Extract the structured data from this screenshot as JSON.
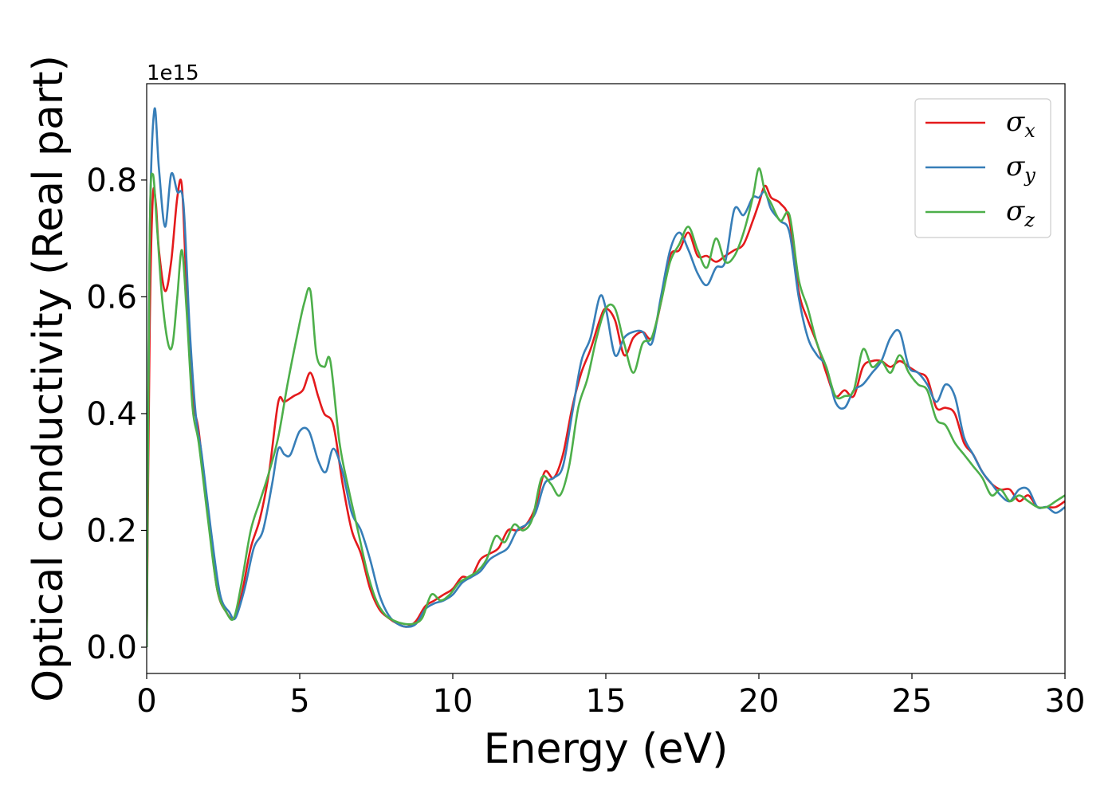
{
  "chart_data": {
    "type": "line",
    "xlabel": "Energy (eV)",
    "ylabel": "Optical conductivity (Real part)",
    "y_offset_text": "1e15",
    "xlim": [
      0,
      30
    ],
    "ylim": [
      -0.045,
      0.965
    ],
    "x_ticks": [
      0,
      5,
      10,
      15,
      20,
      25,
      30
    ],
    "x_tick_labels": [
      "0",
      "5",
      "10",
      "15",
      "20",
      "25",
      "30"
    ],
    "y_ticks": [
      0.0,
      0.2,
      0.4,
      0.6,
      0.8
    ],
    "y_tick_labels": [
      "0.0",
      "0.2",
      "0.4",
      "0.6",
      "0.8"
    ],
    "grid": false,
    "legend_position": "top-right",
    "series": [
      {
        "name": "σx",
        "symbol": "σ",
        "subscript": "x",
        "color": "#e41a1c",
        "x": [
          0,
          0.1,
          0.2,
          0.3,
          0.4,
          0.6,
          0.8,
          1.0,
          1.15,
          1.3,
          1.5,
          1.7,
          2.0,
          2.3,
          2.6,
          2.85,
          3.1,
          3.4,
          3.7,
          4.0,
          4.3,
          4.5,
          4.8,
          5.1,
          5.35,
          5.6,
          5.8,
          6.1,
          6.4,
          6.7,
          7.0,
          7.3,
          7.6,
          7.9,
          8.2,
          8.5,
          8.8,
          9.1,
          9.4,
          9.7,
          10.0,
          10.3,
          10.6,
          10.9,
          11.2,
          11.5,
          11.8,
          12.1,
          12.4,
          12.7,
          13.0,
          13.3,
          13.6,
          13.9,
          14.2,
          14.5,
          14.8,
          15.0,
          15.3,
          15.6,
          15.9,
          16.2,
          16.5,
          16.8,
          17.1,
          17.4,
          17.7,
          18.0,
          18.3,
          18.6,
          18.9,
          19.2,
          19.5,
          19.8,
          20.0,
          20.2,
          20.4,
          20.7,
          21.0,
          21.3,
          21.6,
          21.9,
          22.2,
          22.5,
          22.8,
          23.1,
          23.4,
          23.7,
          24.0,
          24.3,
          24.6,
          24.9,
          25.2,
          25.5,
          25.8,
          26.1,
          26.4,
          26.7,
          27.0,
          27.3,
          27.6,
          27.9,
          28.2,
          28.5,
          28.8,
          29.1,
          29.4,
          29.7,
          30.0
        ],
        "y": [
          0.0,
          0.55,
          0.77,
          0.76,
          0.68,
          0.61,
          0.66,
          0.77,
          0.79,
          0.62,
          0.43,
          0.37,
          0.23,
          0.1,
          0.06,
          0.05,
          0.09,
          0.17,
          0.22,
          0.3,
          0.42,
          0.42,
          0.43,
          0.44,
          0.47,
          0.43,
          0.4,
          0.38,
          0.28,
          0.2,
          0.16,
          0.1,
          0.065,
          0.05,
          0.04,
          0.035,
          0.045,
          0.07,
          0.08,
          0.09,
          0.1,
          0.12,
          0.12,
          0.15,
          0.16,
          0.17,
          0.2,
          0.2,
          0.21,
          0.24,
          0.3,
          0.29,
          0.33,
          0.41,
          0.47,
          0.51,
          0.56,
          0.58,
          0.56,
          0.5,
          0.53,
          0.54,
          0.53,
          0.59,
          0.67,
          0.68,
          0.71,
          0.67,
          0.67,
          0.66,
          0.67,
          0.68,
          0.69,
          0.73,
          0.76,
          0.79,
          0.77,
          0.76,
          0.73,
          0.61,
          0.56,
          0.52,
          0.47,
          0.43,
          0.44,
          0.43,
          0.48,
          0.49,
          0.49,
          0.48,
          0.49,
          0.48,
          0.47,
          0.46,
          0.41,
          0.41,
          0.4,
          0.35,
          0.33,
          0.3,
          0.28,
          0.27,
          0.27,
          0.25,
          0.26,
          0.24,
          0.24,
          0.24,
          0.25
        ]
      },
      {
        "name": "σy",
        "symbol": "σ",
        "subscript": "y",
        "color": "#377eb8",
        "x": [
          0,
          0.1,
          0.25,
          0.4,
          0.6,
          0.8,
          1.0,
          1.2,
          1.4,
          1.6,
          1.8,
          2.1,
          2.4,
          2.7,
          2.9,
          3.2,
          3.5,
          3.8,
          4.1,
          4.3,
          4.5,
          4.7,
          5.0,
          5.3,
          5.6,
          5.85,
          6.1,
          6.4,
          6.7,
          7.0,
          7.3,
          7.6,
          7.9,
          8.2,
          8.5,
          8.8,
          9.1,
          9.4,
          9.7,
          10.0,
          10.3,
          10.6,
          10.9,
          11.2,
          11.5,
          11.8,
          12.1,
          12.4,
          12.7,
          13.0,
          13.3,
          13.6,
          13.9,
          14.2,
          14.5,
          14.8,
          15.0,
          15.3,
          15.6,
          15.9,
          16.2,
          16.5,
          16.8,
          17.1,
          17.4,
          17.7,
          18.0,
          18.3,
          18.6,
          18.9,
          19.2,
          19.5,
          19.8,
          20.0,
          20.2,
          20.4,
          20.7,
          21.0,
          21.3,
          21.6,
          21.9,
          22.2,
          22.5,
          22.8,
          23.1,
          23.4,
          23.7,
          24.0,
          24.3,
          24.6,
          24.9,
          25.2,
          25.5,
          25.8,
          26.1,
          26.4,
          26.7,
          27.0,
          27.3,
          27.6,
          27.9,
          28.2,
          28.5,
          28.8,
          29.1,
          29.4,
          29.7,
          30.0
        ],
        "y": [
          0.0,
          0.7,
          0.92,
          0.82,
          0.72,
          0.81,
          0.78,
          0.76,
          0.55,
          0.4,
          0.33,
          0.2,
          0.09,
          0.06,
          0.05,
          0.1,
          0.17,
          0.2,
          0.28,
          0.34,
          0.33,
          0.33,
          0.37,
          0.37,
          0.32,
          0.3,
          0.34,
          0.3,
          0.23,
          0.2,
          0.15,
          0.09,
          0.055,
          0.04,
          0.035,
          0.04,
          0.065,
          0.075,
          0.08,
          0.09,
          0.11,
          0.12,
          0.13,
          0.15,
          0.16,
          0.17,
          0.2,
          0.21,
          0.23,
          0.28,
          0.29,
          0.31,
          0.4,
          0.49,
          0.53,
          0.6,
          0.58,
          0.5,
          0.53,
          0.54,
          0.54,
          0.52,
          0.6,
          0.68,
          0.71,
          0.68,
          0.64,
          0.62,
          0.65,
          0.66,
          0.75,
          0.74,
          0.77,
          0.77,
          0.78,
          0.75,
          0.73,
          0.71,
          0.6,
          0.53,
          0.5,
          0.48,
          0.42,
          0.41,
          0.44,
          0.45,
          0.47,
          0.49,
          0.53,
          0.54,
          0.48,
          0.47,
          0.45,
          0.42,
          0.45,
          0.43,
          0.36,
          0.33,
          0.3,
          0.28,
          0.26,
          0.25,
          0.27,
          0.27,
          0.24,
          0.24,
          0.23,
          0.24
        ]
      },
      {
        "name": "σz",
        "symbol": "σ",
        "subscript": "z",
        "color": "#4daf4a",
        "x": [
          0,
          0.1,
          0.2,
          0.35,
          0.5,
          0.7,
          0.85,
          1.0,
          1.15,
          1.3,
          1.5,
          1.7,
          2.0,
          2.3,
          2.6,
          2.85,
          3.1,
          3.4,
          3.7,
          4.0,
          4.3,
          4.6,
          4.9,
          5.15,
          5.35,
          5.55,
          5.8,
          6.0,
          6.3,
          6.6,
          6.9,
          7.2,
          7.5,
          7.8,
          8.1,
          8.4,
          8.7,
          9.0,
          9.3,
          9.6,
          9.9,
          10.2,
          10.5,
          10.8,
          11.1,
          11.4,
          11.7,
          12.0,
          12.3,
          12.6,
          12.9,
          13.2,
          13.5,
          13.8,
          14.1,
          14.4,
          14.7,
          15.0,
          15.3,
          15.6,
          15.9,
          16.2,
          16.5,
          16.8,
          17.1,
          17.4,
          17.7,
          18.0,
          18.3,
          18.6,
          18.9,
          19.2,
          19.5,
          19.8,
          20.0,
          20.2,
          20.4,
          20.7,
          21.0,
          21.3,
          21.6,
          21.9,
          22.2,
          22.5,
          22.8,
          23.1,
          23.4,
          23.7,
          24.0,
          24.3,
          24.6,
          24.9,
          25.2,
          25.5,
          25.8,
          26.1,
          26.4,
          26.7,
          27.0,
          27.3,
          27.6,
          27.9,
          28.2,
          28.5,
          28.8,
          29.1,
          29.4,
          29.7,
          30.0
        ],
        "y": [
          0.0,
          0.7,
          0.81,
          0.71,
          0.6,
          0.52,
          0.52,
          0.6,
          0.68,
          0.58,
          0.41,
          0.35,
          0.22,
          0.1,
          0.06,
          0.05,
          0.11,
          0.2,
          0.25,
          0.3,
          0.36,
          0.45,
          0.53,
          0.59,
          0.61,
          0.5,
          0.48,
          0.49,
          0.35,
          0.27,
          0.2,
          0.13,
          0.08,
          0.055,
          0.045,
          0.04,
          0.04,
          0.05,
          0.09,
          0.08,
          0.09,
          0.11,
          0.12,
          0.13,
          0.15,
          0.19,
          0.18,
          0.21,
          0.2,
          0.22,
          0.29,
          0.28,
          0.26,
          0.31,
          0.41,
          0.46,
          0.53,
          0.58,
          0.58,
          0.52,
          0.47,
          0.52,
          0.53,
          0.59,
          0.66,
          0.69,
          0.72,
          0.68,
          0.65,
          0.7,
          0.66,
          0.67,
          0.71,
          0.77,
          0.82,
          0.78,
          0.76,
          0.73,
          0.74,
          0.63,
          0.58,
          0.52,
          0.48,
          0.43,
          0.43,
          0.44,
          0.51,
          0.48,
          0.49,
          0.47,
          0.5,
          0.47,
          0.45,
          0.44,
          0.39,
          0.38,
          0.35,
          0.33,
          0.31,
          0.29,
          0.26,
          0.27,
          0.25,
          0.26,
          0.25,
          0.24,
          0.24,
          0.25,
          0.26
        ]
      }
    ]
  }
}
